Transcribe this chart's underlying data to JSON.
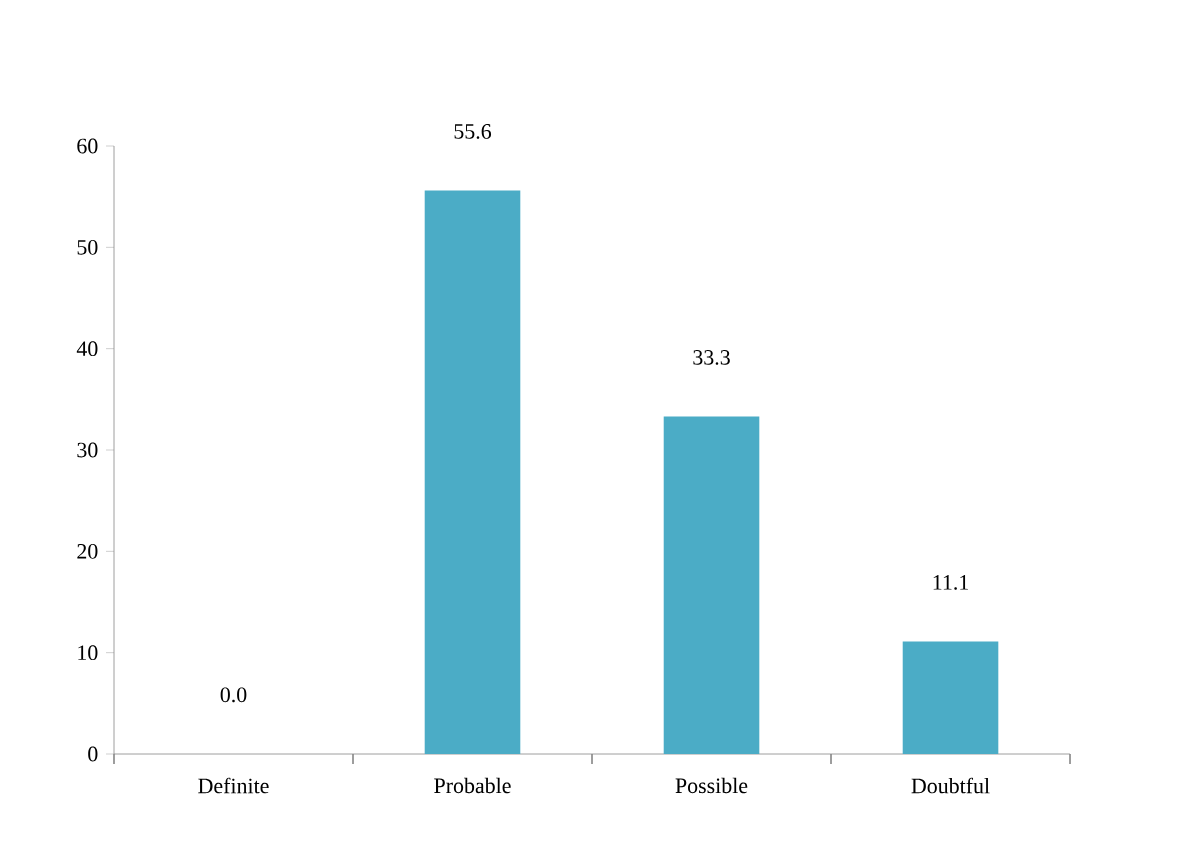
{
  "chart_data": {
    "type": "bar",
    "categories": [
      "Definite",
      "Probable",
      "Possible",
      "Doubtful"
    ],
    "values": [
      0,
      55.6,
      33.3,
      11.1
    ],
    "value_labels": [
      "0.0",
      "55.6",
      "33.3",
      "11.1"
    ],
    "color": "#4bacc6",
    "ylim": [
      0,
      60
    ],
    "yticks": [
      0,
      10,
      20,
      30,
      40,
      50,
      60
    ]
  }
}
